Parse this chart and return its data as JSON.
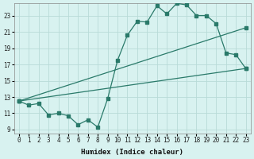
{
  "xlabel": "Humidex (Indice chaleur)",
  "bg_color": "#d8f2f0",
  "grid_color": "#b8dbd8",
  "line_color": "#2a7a6a",
  "xlim": [
    -0.5,
    23.5
  ],
  "ylim": [
    8.5,
    24.5
  ],
  "xticks": [
    0,
    1,
    2,
    3,
    4,
    5,
    6,
    7,
    8,
    9,
    10,
    11,
    12,
    13,
    14,
    15,
    16,
    17,
    18,
    19,
    20,
    21,
    22,
    23
  ],
  "yticks": [
    9,
    11,
    13,
    15,
    17,
    19,
    21,
    23
  ],
  "series1_x": [
    0,
    1,
    2,
    3,
    4,
    5,
    6,
    7,
    8,
    9,
    10,
    11,
    12,
    13,
    14,
    15,
    16,
    17,
    18,
    19,
    20,
    21,
    22,
    23
  ],
  "series1_y": [
    12.5,
    12.0,
    12.2,
    10.8,
    11.0,
    10.7,
    9.6,
    10.2,
    9.3,
    12.8,
    17.5,
    20.6,
    22.3,
    22.2,
    24.2,
    23.2,
    24.5,
    24.3,
    23.0,
    23.0,
    22.0,
    18.4,
    18.2,
    16.5
  ],
  "series2_x": [
    0,
    23
  ],
  "series2_y": [
    12.5,
    21.5
  ],
  "series3_x": [
    0,
    23
  ],
  "series3_y": [
    12.5,
    16.5
  ],
  "marker_size": 2.5,
  "line_width": 0.9
}
